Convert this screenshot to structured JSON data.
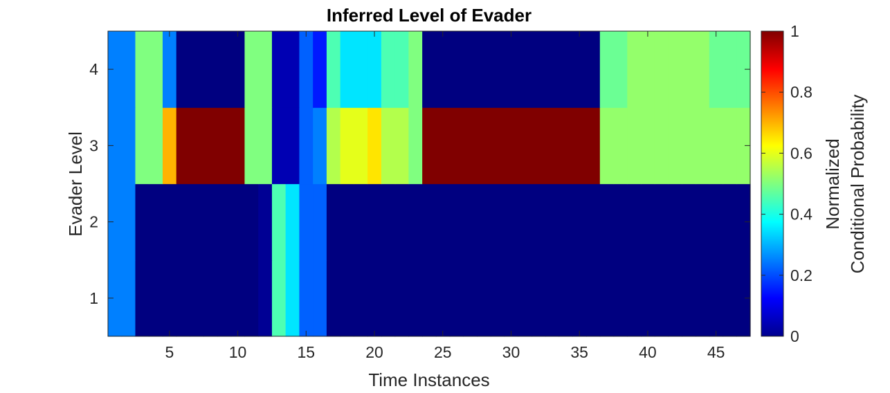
{
  "chart_data": {
    "type": "heatmap",
    "title": "Inferred Level of Evader",
    "xlabel": "Time Instances",
    "ylabel": "Evader Level",
    "colorbar_label": [
      "Normalized",
      "Conditional Probability"
    ],
    "colormap": "jet",
    "x_range": [
      0.5,
      47.5
    ],
    "y_range": [
      0.5,
      4.5
    ],
    "x_ticks": [
      5,
      10,
      15,
      20,
      25,
      30,
      35,
      40,
      45
    ],
    "y_ticks": [
      1,
      2,
      3,
      4
    ],
    "colorbar_ticks": [
      0,
      0.2,
      0.4,
      0.6,
      0.8,
      1
    ],
    "colorbar_range": [
      0,
      1
    ],
    "time": [
      1,
      2,
      3,
      4,
      5,
      6,
      7,
      8,
      9,
      10,
      11,
      12,
      13,
      14,
      15,
      16,
      17,
      18,
      19,
      20,
      21,
      22,
      23,
      24,
      25,
      26,
      27,
      28,
      29,
      30,
      31,
      32,
      33,
      34,
      35,
      36,
      37,
      38,
      39,
      40,
      41,
      42,
      43,
      44,
      45,
      46,
      47
    ],
    "levels": [
      1,
      2,
      3,
      4
    ],
    "values": {
      "level1": [
        0.25,
        0.25,
        0,
        0,
        0,
        0,
        0,
        0,
        0,
        0,
        0,
        0.02,
        0.45,
        0.35,
        0.22,
        0.22,
        0,
        0,
        0,
        0,
        0,
        0,
        0,
        0,
        0,
        0,
        0,
        0,
        0,
        0,
        0,
        0,
        0,
        0,
        0,
        0,
        0,
        0,
        0,
        0,
        0,
        0,
        0,
        0,
        0,
        0,
        0
      ],
      "level2": [
        0.25,
        0.25,
        0,
        0,
        0,
        0,
        0,
        0,
        0,
        0,
        0,
        0.02,
        0.45,
        0.35,
        0.22,
        0.22,
        0,
        0,
        0,
        0,
        0,
        0,
        0,
        0,
        0,
        0,
        0,
        0,
        0,
        0,
        0,
        0,
        0,
        0,
        0,
        0,
        0,
        0,
        0,
        0,
        0,
        0,
        0,
        0,
        0,
        0,
        0
      ],
      "level3": [
        0.25,
        0.25,
        0.5,
        0.5,
        0.7,
        1,
        1,
        1,
        1,
        1,
        0.5,
        0.5,
        0.05,
        0.05,
        0.22,
        0.25,
        0.55,
        0.6,
        0.6,
        0.65,
        0.55,
        0.55,
        0.5,
        1,
        1,
        1,
        1,
        1,
        1,
        1,
        1,
        1,
        1,
        1,
        1,
        1,
        0.52,
        0.52,
        0.52,
        0.52,
        0.52,
        0.52,
        0.52,
        0.52,
        0.52,
        0.52,
        0.52
      ],
      "level4": [
        0.25,
        0.25,
        0.5,
        0.5,
        0.25,
        0,
        0,
        0,
        0,
        0,
        0.5,
        0.5,
        0.05,
        0.05,
        0.22,
        0.15,
        0.45,
        0.35,
        0.35,
        0.35,
        0.45,
        0.45,
        0.5,
        0,
        0,
        0,
        0,
        0,
        0,
        0,
        0,
        0,
        0,
        0,
        0,
        0,
        0.48,
        0.48,
        0.52,
        0.52,
        0.52,
        0.52,
        0.52,
        0.52,
        0.48,
        0.48,
        0.48
      ]
    }
  }
}
